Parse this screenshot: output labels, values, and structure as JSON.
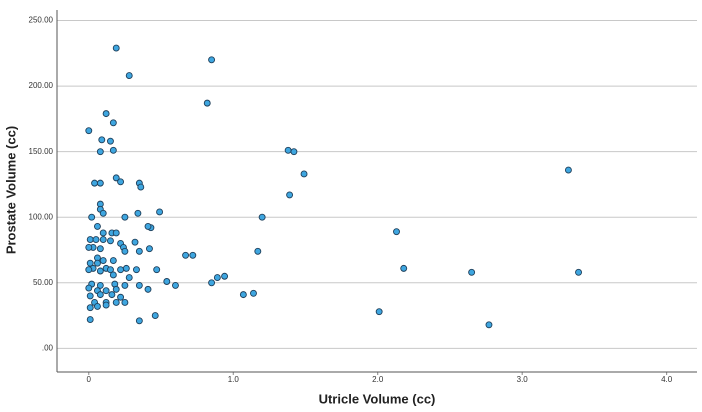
{
  "chart_data": {
    "type": "scatter",
    "x_label": "Utricle Volume (cc)",
    "y_label": "Prostate Volume (cc)",
    "x": [
      0.0,
      0.19,
      0.28,
      0.85,
      0.82,
      0.12,
      0.17,
      0.09,
      0.15,
      0.08,
      0.17,
      0.19,
      0.22,
      0.35,
      0.36,
      0.04,
      0.08,
      1.38,
      1.42,
      1.49,
      1.39,
      3.32,
      0.49,
      0.34,
      1.2,
      0.08,
      0.08,
      0.1,
      0.02,
      0.25,
      0.43,
      0.41,
      2.13,
      0.06,
      0.1,
      0.16,
      0.19,
      0.01,
      0.05,
      0.1,
      0.15,
      0.22,
      0.32,
      0.03,
      0.08,
      0.24,
      0.42,
      0.0,
      1.17,
      0.35,
      0.25,
      0.67,
      0.72,
      0.06,
      0.1,
      0.17,
      0.01,
      0.06,
      0.03,
      0.12,
      0.22,
      0.26,
      0.33,
      0.47,
      0.0,
      2.18,
      2.65,
      3.39,
      0.08,
      0.15,
      0.17,
      0.94,
      0.89,
      0.28,
      0.54,
      0.6,
      0.85,
      0.02,
      0.08,
      0.18,
      0.25,
      0.35,
      0.41,
      0.0,
      0.06,
      0.12,
      0.19,
      1.07,
      1.14,
      0.01,
      0.08,
      0.16,
      0.22,
      0.04,
      0.12,
      0.19,
      0.01,
      0.06,
      0.12,
      0.25,
      2.01,
      0.46,
      0.01,
      0.35,
      2.77
    ],
    "values": [
      166,
      229,
      208,
      220,
      187,
      179,
      172,
      159,
      158,
      150,
      151,
      130,
      127,
      126,
      123,
      126,
      126,
      151,
      150,
      133,
      117,
      136,
      104,
      103,
      100,
      110,
      106,
      103,
      100,
      100,
      92,
      93,
      89,
      93,
      88,
      88,
      88,
      83,
      83,
      83,
      82,
      80,
      81,
      77,
      76,
      77,
      76,
      77,
      74,
      74,
      74,
      71,
      71,
      69,
      67,
      67,
      65,
      65,
      61,
      61,
      60,
      61,
      60,
      60,
      60,
      61,
      58,
      58,
      59,
      60,
      56,
      55,
      54,
      54,
      51,
      48,
      50,
      49,
      48,
      49,
      48,
      48,
      45,
      46,
      44,
      44,
      45,
      41,
      42,
      40,
      41,
      41,
      39,
      35,
      35,
      35,
      31,
      32,
      33,
      35,
      28,
      25,
      22,
      21,
      18
    ],
    "color": "#3ea6e0",
    "xlim": [
      -0.22,
      4.21
    ],
    "ylim": [
      -18,
      258
    ],
    "xticks": [
      0,
      {
        "value": 1,
        "label": "1.0"
      },
      {
        "value": 2,
        "label": "2.0"
      },
      {
        "value": 3,
        "label": "3.0"
      },
      {
        "value": 4,
        "label": "4.0"
      }
    ],
    "yticks": [
      {
        "value": 0,
        "label": ".00"
      },
      {
        "value": 50,
        "label": "50.00"
      },
      {
        "value": 100,
        "label": "100.00"
      },
      {
        "value": 150,
        "label": "150.00"
      },
      {
        "value": 200,
        "label": "200.00"
      },
      {
        "value": 250,
        "label": "250.00"
      }
    ],
    "grid": true
  }
}
